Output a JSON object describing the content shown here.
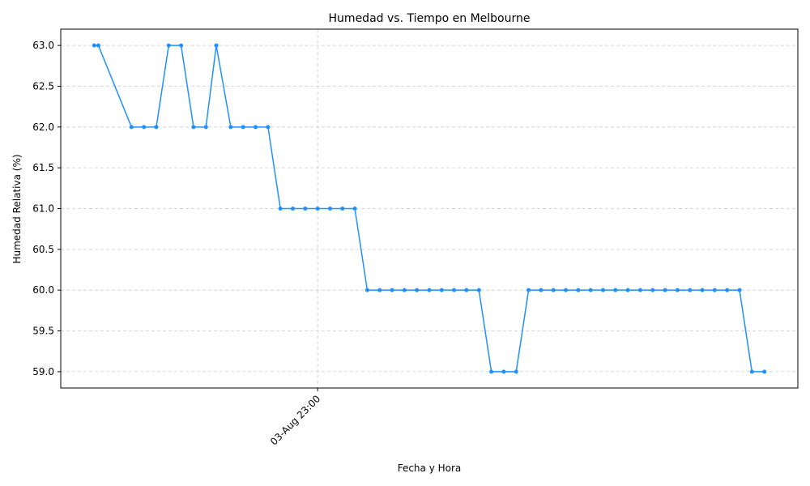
{
  "chart_data": {
    "type": "line",
    "title": "Humedad vs. Tiempo en Melbourne",
    "xlabel": "Fecha y Hora",
    "ylabel": "Humedad Relativa (%)",
    "x_tick_labels": [
      "03-Aug 23:00"
    ],
    "y_ticks": [
      59.0,
      59.5,
      60.0,
      60.5,
      61.0,
      61.5,
      62.0,
      62.5,
      63.0
    ],
    "ylim": [
      58.8,
      63.2
    ],
    "grid": true,
    "series": [
      {
        "color": "#1e90ff",
        "x": [
          "03-Aug 14:00",
          "03-Aug 14:10",
          "03-Aug 15:30",
          "03-Aug 16:00",
          "03-Aug 16:30",
          "03-Aug 17:00",
          "03-Aug 17:30",
          "03-Aug 18:00",
          "03-Aug 18:30",
          "03-Aug 18:55",
          "03-Aug 19:30",
          "03-Aug 20:00",
          "03-Aug 20:30",
          "03-Aug 21:00",
          "03-Aug 21:30",
          "03-Aug 22:00",
          "03-Aug 22:30",
          "03-Aug 23:00",
          "03-Aug 23:30",
          "04-Aug 00:00",
          "04-Aug 00:30",
          "04-Aug 01:00",
          "04-Aug 01:30",
          "04-Aug 02:00",
          "04-Aug 02:30",
          "04-Aug 03:00",
          "04-Aug 03:30",
          "04-Aug 04:00",
          "04-Aug 04:30",
          "04-Aug 05:00",
          "04-Aug 05:30",
          "04-Aug 06:00",
          "04-Aug 06:30",
          "04-Aug 07:00",
          "04-Aug 07:30",
          "04-Aug 08:00",
          "04-Aug 08:30",
          "04-Aug 09:00",
          "04-Aug 09:30",
          "04-Aug 10:00",
          "04-Aug 10:30",
          "04-Aug 11:00",
          "04-Aug 11:30",
          "04-Aug 12:00",
          "04-Aug 12:30",
          "04-Aug 13:00",
          "04-Aug 13:30",
          "04-Aug 14:00",
          "04-Aug 14:30",
          "04-Aug 15:00",
          "04-Aug 15:30",
          "04-Aug 16:00",
          "04-Aug 16:30",
          "04-Aug 17:00"
        ],
        "values": [
          63,
          63,
          62,
          62,
          62,
          63,
          63,
          62,
          62,
          63,
          62,
          62,
          62,
          62,
          61,
          61,
          61,
          61,
          61,
          61,
          61,
          60,
          60,
          60,
          60,
          60,
          60,
          60,
          60,
          60,
          60,
          59,
          59,
          59,
          60,
          60,
          60,
          60,
          60,
          60,
          60,
          60,
          60,
          60,
          60,
          60,
          60,
          60,
          60,
          60,
          60,
          60,
          59,
          59
        ]
      }
    ]
  }
}
